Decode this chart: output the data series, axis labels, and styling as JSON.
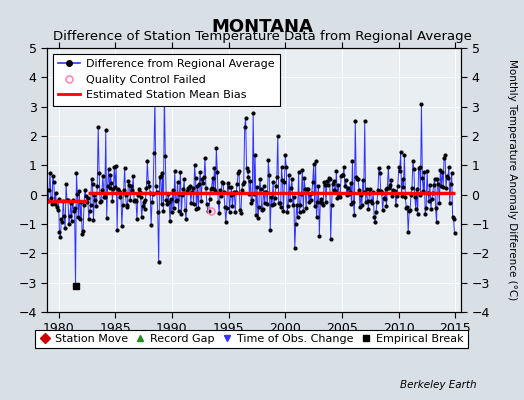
{
  "title": "MONTANA",
  "subtitle": "Difference of Station Temperature Data from Regional Average",
  "ylabel_right": "Monthly Temperature Anomaly Difference (°C)",
  "xlim": [
    1979.0,
    2015.5
  ],
  "ylim": [
    -4,
    5
  ],
  "yticks": [
    -4,
    -3,
    -2,
    -1,
    0,
    1,
    2,
    3,
    4,
    5
  ],
  "xticks": [
    1980,
    1985,
    1990,
    1995,
    2000,
    2005,
    2010,
    2015
  ],
  "plot_bg": "#e8eef2",
  "fig_bg": "#d8dfe5",
  "line_color": "#3333ff",
  "dot_color": "#000000",
  "bias_color": "#ff0000",
  "bias_value_early": -0.22,
  "bias_value_late": 0.05,
  "bias_break_year": 1982.5,
  "empirical_break_year": 1981.5,
  "empirical_break_value": -3.1,
  "qc_fail_year": 1993.42,
  "qc_fail_value": -0.55,
  "title_fontsize": 13,
  "subtitle_fontsize": 9.5,
  "tick_fontsize": 9,
  "legend_fontsize": 8,
  "watermark": "Berkeley Earth",
  "seed": 42
}
